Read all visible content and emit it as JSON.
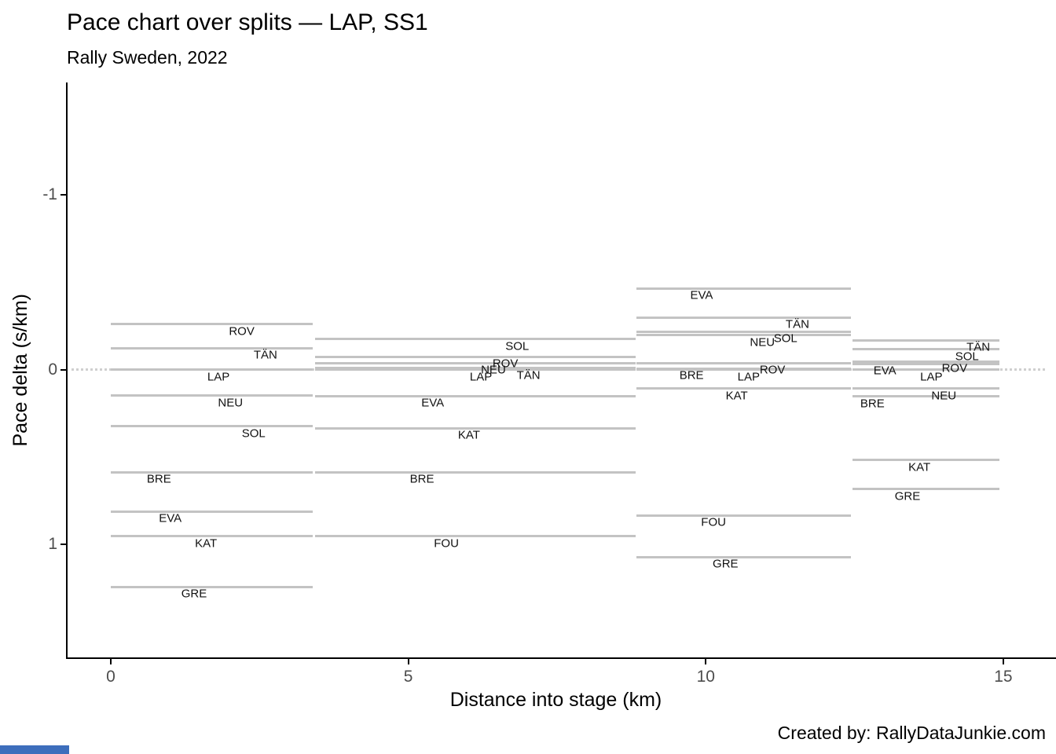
{
  "chart_data": {
    "type": "line",
    "title": "Pace chart over splits — LAP, SS1",
    "subtitle": "Rally Sweden, 2022",
    "xlabel": "Distance into stage (km)",
    "ylabel": "Pace delta (s/km)",
    "x_ticks": [
      0,
      5,
      10,
      15
    ],
    "y_ticks": [
      -1,
      0,
      1
    ],
    "xlim": [
      -0.75,
      15.7
    ],
    "ylim": [
      -1.65,
      1.65
    ],
    "y_axis_reversed": true,
    "grid": false,
    "legend": "inline-labels",
    "reference_driver": "LAP",
    "zero_reference": 0,
    "split_points_km": [
      3.4,
      8.82,
      12.44,
      14.94
    ],
    "segments_km": [
      [
        0,
        3.4
      ],
      [
        3.43,
        8.82
      ],
      [
        8.84,
        12.44
      ],
      [
        12.46,
        14.94
      ]
    ],
    "series": [
      {
        "name": "ROV",
        "id": "rov",
        "values": [
          -0.26,
          -0.072,
          -0.038,
          -0.045
        ],
        "label_km": [
          2.2,
          6.63,
          11.12,
          14.18
        ]
      },
      {
        "name": "TÄN",
        "id": "tan",
        "values": [
          -0.122,
          -0.008,
          -0.298,
          -0.167
        ],
        "label_km": [
          2.6,
          7.02,
          11.54,
          14.58
        ]
      },
      {
        "name": "LAP",
        "id": "lap",
        "values": [
          0,
          0,
          0,
          0
        ],
        "label_km": [
          1.81,
          6.22,
          10.72,
          13.79
        ]
      },
      {
        "name": "NEU",
        "id": "neu",
        "values": [
          0.149,
          -0.038,
          -0.197,
          0.11
        ],
        "label_km": [
          2.01,
          6.43,
          10.95,
          14.0
        ]
      },
      {
        "name": "SOL",
        "id": "sol",
        "values": [
          0.325,
          -0.175,
          -0.217,
          -0.115
        ],
        "label_km": [
          2.4,
          6.83,
          11.34,
          14.39
        ]
      },
      {
        "name": "BRE",
        "id": "bre",
        "values": [
          0.587,
          0.587,
          -0.005,
          0.155
        ],
        "label_km": [
          0.81,
          5.23,
          9.76,
          12.8
        ]
      },
      {
        "name": "EVA",
        "id": "eva",
        "values": [
          0.813,
          0.152,
          -0.464,
          -0.032
        ],
        "label_km": [
          1.0,
          5.41,
          9.93,
          13.01
        ]
      },
      {
        "name": "KAT",
        "id": "kat",
        "values": [
          0.955,
          0.335,
          0.108,
          0.519
        ],
        "label_km": [
          1.6,
          6.02,
          10.52,
          13.59
        ]
      },
      {
        "name": "GRE",
        "id": "gre",
        "values": [
          1.243,
          null,
          1.073,
          0.684
        ],
        "label_km": [
          1.4,
          null,
          10.33,
          13.39
        ]
      },
      {
        "name": "FOU",
        "id": "fou",
        "values": [
          null,
          0.954,
          0.834,
          null
        ],
        "label_km": [
          null,
          5.64,
          10.13,
          null
        ]
      }
    ],
    "colors": {
      "pace_line": "#c3c3c3",
      "zero_line": "#cfcfcf",
      "axis": "#000000",
      "tick_label": "#4d4d4d",
      "driver_label": "#111111"
    }
  },
  "footer": {
    "credit": "Created by: RallyDataJunkie.com",
    "accent_color": "#3d6ebc"
  }
}
